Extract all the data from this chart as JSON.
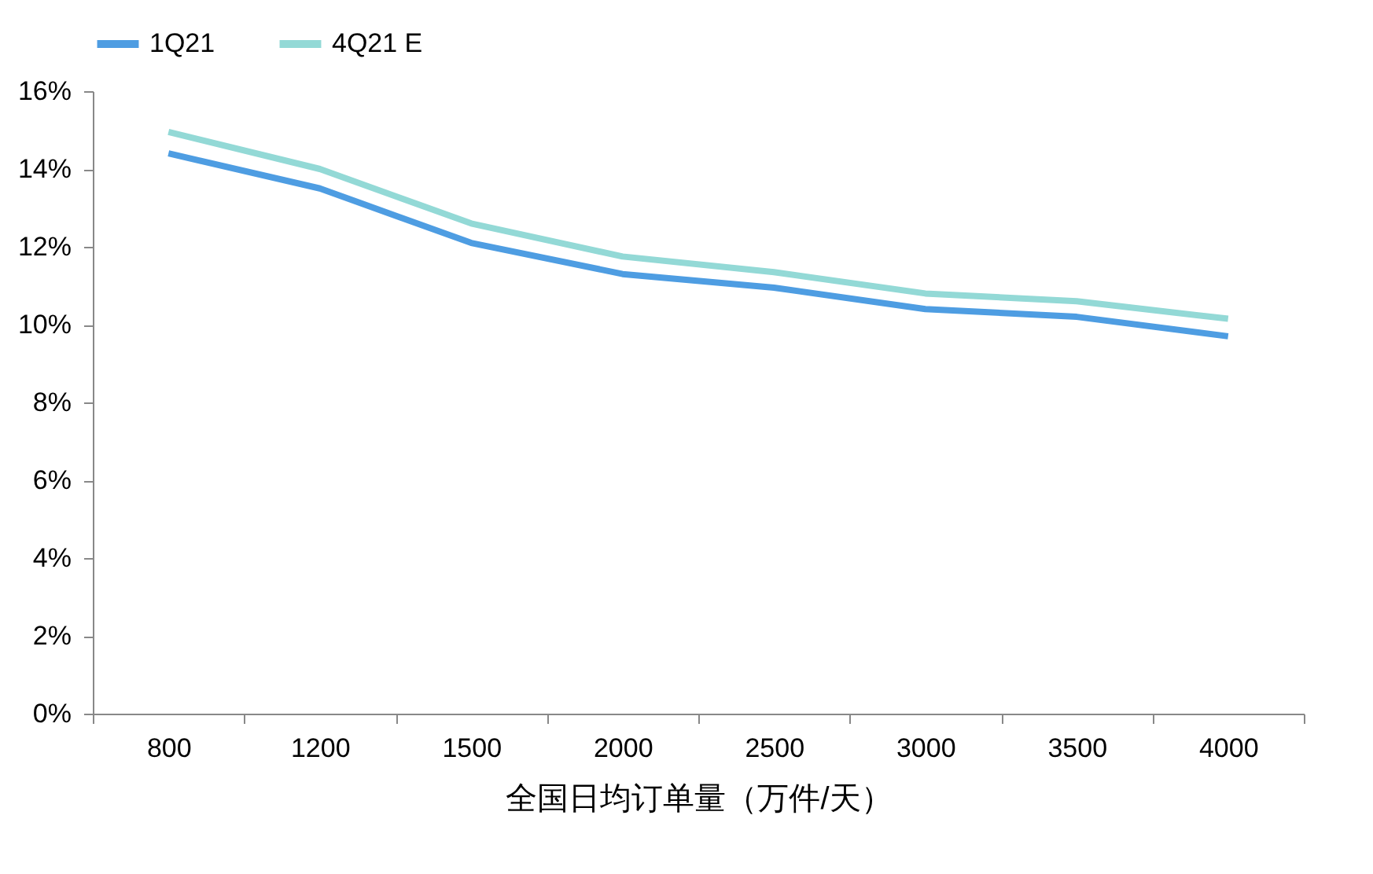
{
  "chart_data": {
    "type": "line",
    "xlabel": "全国日均订单量（万件/天）",
    "categories": [
      "800",
      "1200",
      "1500",
      "2000",
      "2500",
      "3000",
      "3500",
      "4000"
    ],
    "series": [
      {
        "name": "1Q21",
        "color": "#4e9de2",
        "values": [
          14.4,
          13.5,
          12.1,
          11.3,
          10.95,
          10.4,
          10.2,
          9.7
        ]
      },
      {
        "name": "4Q21 E",
        "color": "#93d9d6",
        "values": [
          14.95,
          14.0,
          12.6,
          11.75,
          11.35,
          10.8,
          10.6,
          10.15
        ]
      }
    ],
    "ylim": [
      0,
      16
    ],
    "yticks": [
      {
        "value": 0,
        "label": "0%"
      },
      {
        "value": 2,
        "label": "2%"
      },
      {
        "value": 4,
        "label": "4%"
      },
      {
        "value": 6,
        "label": "6%"
      },
      {
        "value": 8,
        "label": "8%"
      },
      {
        "value": 10,
        "label": "10%"
      },
      {
        "value": 12,
        "label": "12%"
      },
      {
        "value": 14,
        "label": "14%"
      },
      {
        "value": 16,
        "label": "16%"
      }
    ],
    "grid": false,
    "legend": "top",
    "marker": "none",
    "line_style": "solid"
  }
}
